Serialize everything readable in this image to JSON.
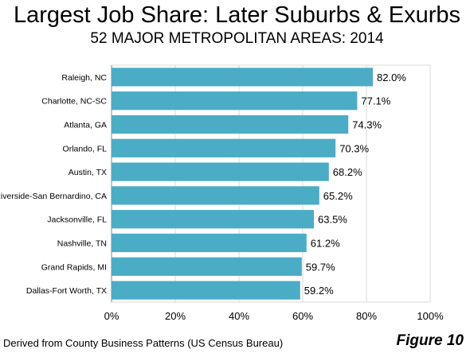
{
  "title": "Largest Job Share: Later Suburbs & Exurbs",
  "subtitle": "52 MAJOR METROPOLITAN AREAS: 2014",
  "footer": "Derived from County Business Patterns (US Census Bureau)",
  "figure_label": "Figure 10",
  "chart_data": {
    "type": "bar",
    "orientation": "horizontal",
    "categories": [
      "Raleigh, NC",
      "Charlotte, NC-SC",
      "Atlanta, GA",
      "Orlando, FL",
      "Austin, TX",
      "Riverside-San Bernardino, CA",
      "Jacksonville, FL",
      "Nashville, TN",
      "Grand Rapids, MI",
      "Dallas-Fort Worth, TX"
    ],
    "values": [
      82.0,
      77.1,
      74.3,
      70.3,
      68.2,
      65.2,
      63.5,
      61.2,
      59.7,
      59.2
    ],
    "value_labels": [
      "82.0%",
      "77.1%",
      "74.3%",
      "70.3%",
      "68.2%",
      "65.2%",
      "63.5%",
      "61.2%",
      "59.7%",
      "59.2%"
    ],
    "xlim": [
      0,
      100
    ],
    "x_ticks": [
      "0%",
      "20%",
      "40%",
      "60%",
      "80%",
      "100%"
    ],
    "grid": "vertical",
    "bar_color": "#4BACC6"
  }
}
